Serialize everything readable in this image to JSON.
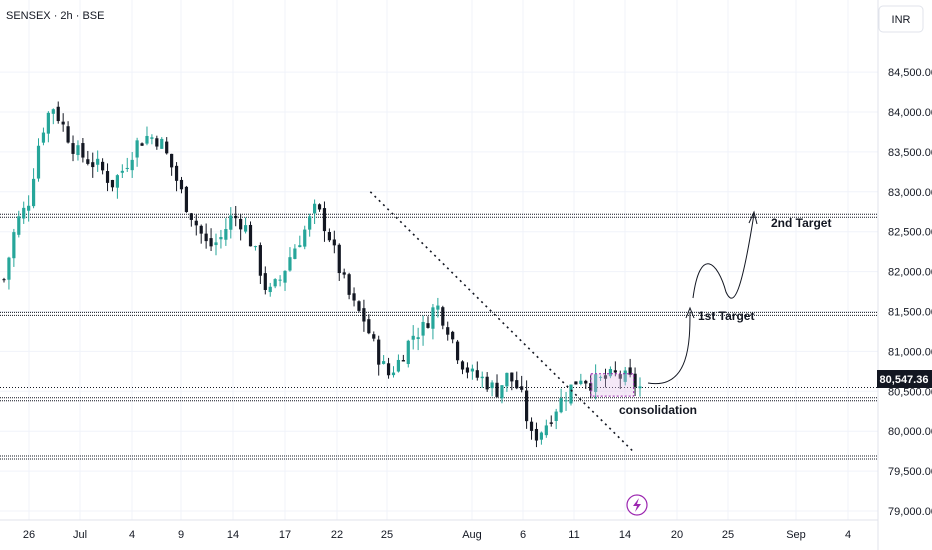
{
  "header": {
    "symbol": "SENSEX",
    "interval": "2h",
    "exchange": "BSE",
    "separator": " · ",
    "currency": "INR"
  },
  "colors": {
    "up": "#26a69a",
    "down": "#131722",
    "grid": "#f0f3fa",
    "line": "#131722",
    "box": "#e1bee7",
    "flash": "#9c27b0"
  },
  "chart_data": {
    "type": "candlestick",
    "y_unit": "INR",
    "ylim": [
      78800,
      85100
    ],
    "y_ticks": [
      "79,000.00",
      "79,500.00",
      "80,000.00",
      "80,500.00",
      "81,000.00",
      "81,500.00",
      "82,000.00",
      "82,500.00",
      "83,000.00",
      "83,500.00",
      "84,000.00",
      "84,500.00"
    ],
    "y_tick_values": [
      79000,
      79500,
      80000,
      80500,
      81000,
      81500,
      82000,
      82500,
      83000,
      83500,
      84000,
      84500
    ],
    "x_ticks": [
      "26",
      "Jul",
      "4",
      "9",
      "14",
      "17",
      "22",
      "25",
      "Aug",
      "6",
      "11",
      "14",
      "20",
      "25",
      "Sep",
      "4"
    ],
    "x_tick_dates": [
      "2024-06-26",
      "2024-07-01",
      "2024-07-04",
      "2024-07-09",
      "2024-07-14",
      "2024-07-17",
      "2024-07-22",
      "2024-07-25",
      "2024-08-01",
      "2024-08-06",
      "2024-08-11",
      "2024-08-14",
      "2024-08-20",
      "2024-08-25",
      "2024-09-01",
      "2024-09-04"
    ],
    "last_price": "80,547.36",
    "last_value": 80547.36,
    "close_path": [
      81900,
      82600,
      82850,
      83700,
      84100,
      83800,
      83500,
      83400,
      83300,
      83100,
      83300,
      83600,
      83700,
      83650,
      83300,
      82900,
      82600,
      82300,
      82400,
      82700,
      82600,
      82200,
      81700,
      81900,
      82250,
      82500,
      82800,
      82500,
      82000,
      81600,
      81400,
      81000,
      80700,
      80900,
      81200,
      81300,
      81600,
      81300,
      80900,
      80700,
      80650,
      80500,
      80700,
      80500,
      79900,
      80050,
      80300,
      80500,
      80700,
      80600,
      80650,
      80700,
      80650,
      80547
    ],
    "annotations": {
      "horizontal_levels": [
        82700,
        81470,
        80400,
        79670
      ],
      "trendline": {
        "from": [
          83000,
          "2024-07-24"
        ],
        "to": [
          79740,
          "2024-08-15"
        ]
      },
      "box": {
        "top": 80720,
        "bottom": 80440,
        "from": "2024-08-12",
        "to": "2024-08-15"
      },
      "labels": {
        "target2": "2nd Target",
        "target1": "1st Target",
        "consolidation": "consolidation"
      }
    }
  }
}
